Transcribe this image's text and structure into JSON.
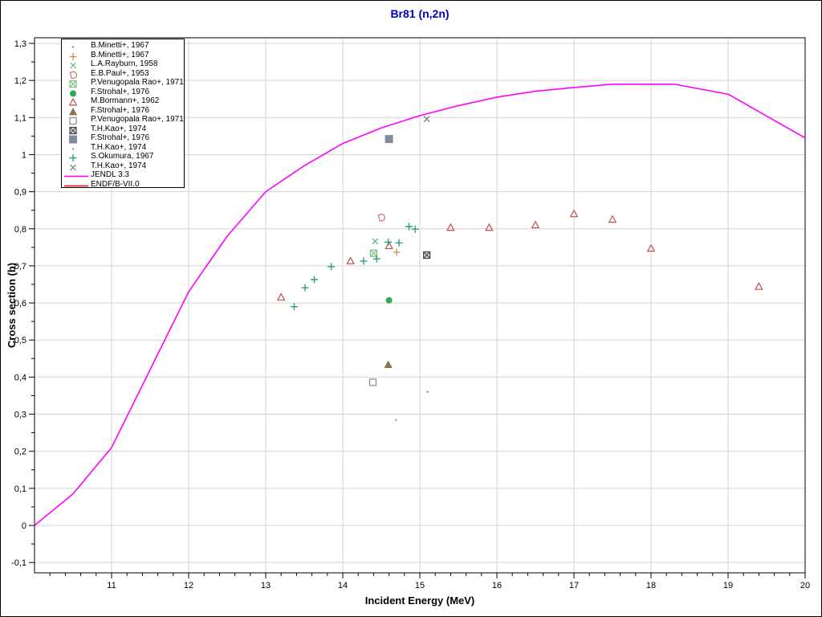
{
  "title": {
    "text": "Br81 (n,2n)",
    "color": "#0000c0"
  },
  "axes": {
    "xlabel": "Incident Energy (MeV)",
    "ylabel": "Cross section (b)",
    "x_min": 10,
    "x_max": 20,
    "y_min": -0.128,
    "y_max": 1.315,
    "x_major_ticks": [
      {
        "v": 11,
        "label": "11"
      },
      {
        "v": 12,
        "label": "12"
      },
      {
        "v": 13,
        "label": "13"
      },
      {
        "v": 14,
        "label": "14"
      },
      {
        "v": 15,
        "label": "15"
      },
      {
        "v": 16,
        "label": "16"
      },
      {
        "v": 17,
        "label": "17"
      },
      {
        "v": 18,
        "label": "18"
      },
      {
        "v": 19,
        "label": "19"
      },
      {
        "v": 20,
        "label": "20"
      }
    ],
    "y_major_ticks": [
      {
        "v": -0.1,
        "label": "-0,1"
      },
      {
        "v": 0,
        "label": "0"
      },
      {
        "v": 0.1,
        "label": "0,1"
      },
      {
        "v": 0.2,
        "label": "0,2"
      },
      {
        "v": 0.3,
        "label": "0,3"
      },
      {
        "v": 0.4,
        "label": "0,4"
      },
      {
        "v": 0.5,
        "label": "0,5"
      },
      {
        "v": 0.6,
        "label": "0,6"
      },
      {
        "v": 0.7,
        "label": "0,7"
      },
      {
        "v": 0.8,
        "label": "0,8"
      },
      {
        "v": 0.9,
        "label": "0,9"
      },
      {
        "v": 1,
        "label": "1"
      },
      {
        "v": 1.1,
        "label": "1,1"
      },
      {
        "v": 1.2,
        "label": "1,2"
      },
      {
        "v": 1.3,
        "label": "1,3"
      }
    ],
    "x_minor_step": 0.2,
    "y_minor_step": 0.05,
    "grid_color": "#d4d4d4",
    "axis_color": "#000000",
    "grid_on": true
  },
  "chart_data": {
    "type": "line+scatter",
    "title": "Br81 (n,2n)",
    "xlabel": "Incident Energy (MeV)",
    "ylabel": "Cross section (b)",
    "xlim": [
      10,
      20
    ],
    "ylim": [
      -0.128,
      1.315
    ],
    "legend_position": "top-left",
    "series": [
      {
        "name": "B.Minetti+, 1967",
        "marker": "dot",
        "color": "#b08a5a",
        "points": [
          [
            14.69,
            0.284
          ]
        ]
      },
      {
        "name": "B.Minetti+, 1967",
        "marker": "plus",
        "color": "#bf9a55",
        "points": [
          [
            14.7,
            0.737
          ]
        ]
      },
      {
        "name": "L.A.Rayburn, 1958",
        "marker": "x",
        "color": "#5cb585",
        "points": [
          [
            14.42,
            0.766
          ]
        ]
      },
      {
        "name": "E.B.Paul+, 1953",
        "marker": "d-open",
        "color": "#c87272",
        "points": [
          [
            14.5,
            0.83
          ]
        ]
      },
      {
        "name": "P.Venugopala Rao+, 1971",
        "marker": "square-hatch",
        "color": "#85bb85",
        "points": [
          [
            14.4,
            0.734
          ]
        ]
      },
      {
        "name": "F.Strohal+, 1976",
        "marker": "circle-fill",
        "color": "#35a855",
        "points": [
          [
            14.6,
            0.607
          ]
        ]
      },
      {
        "name": "M.Bormann+, 1962",
        "marker": "triangle-open",
        "color": "#c14f4f",
        "points": [
          [
            13.2,
            0.615
          ],
          [
            14.1,
            0.713
          ],
          [
            14.6,
            0.754
          ],
          [
            15.4,
            0.803
          ],
          [
            15.9,
            0.803
          ],
          [
            16.5,
            0.81
          ],
          [
            17.0,
            0.84
          ],
          [
            17.5,
            0.825
          ],
          [
            18.0,
            0.747
          ],
          [
            19.4,
            0.644
          ]
        ]
      },
      {
        "name": "F.Strohal+, 1976",
        "marker": "triangle-fill",
        "color": "#8a7450",
        "points": [
          [
            14.59,
            0.433
          ]
        ]
      },
      {
        "name": "P.Venugopala Rao+, 1971",
        "marker": "square-open",
        "color": "#888888",
        "points": [
          [
            14.39,
            0.386
          ]
        ]
      },
      {
        "name": "T.H.Kao+, 1974",
        "marker": "square-x",
        "color": "#40404a",
        "points": [
          [
            15.09,
            0.729
          ]
        ]
      },
      {
        "name": "F.Strohal+, 1976",
        "marker": "square-fill",
        "color": "#7d8d9d",
        "points": [
          [
            14.6,
            1.042
          ]
        ]
      },
      {
        "name": "T.H.Kao+, 1974",
        "marker": "dot",
        "color": "#8890a0",
        "points": [
          [
            15.1,
            0.36
          ]
        ]
      },
      {
        "name": "S.Okumura, 1967",
        "marker": "plus",
        "color": "#2f9e82",
        "points": [
          [
            13.37,
            0.59
          ],
          [
            13.51,
            0.641
          ],
          [
            13.63,
            0.663
          ],
          [
            13.85,
            0.698
          ],
          [
            14.27,
            0.713
          ],
          [
            14.44,
            0.719
          ],
          [
            14.59,
            0.764
          ],
          [
            14.73,
            0.762
          ],
          [
            14.86,
            0.806
          ],
          [
            14.94,
            0.799
          ]
        ]
      },
      {
        "name": "T.H.Kao+, 1974",
        "marker": "x",
        "color": "#6d7888",
        "points": [
          [
            15.09,
            1.096
          ]
        ]
      },
      {
        "name": "JENDL 3.3",
        "marker": "line",
        "color": "#ff00ff",
        "points": [
          [
            10.0,
            0.0
          ],
          [
            10.5,
            0.085
          ],
          [
            11.0,
            0.21
          ],
          [
            11.5,
            0.42
          ],
          [
            12.0,
            0.63
          ],
          [
            12.5,
            0.78
          ],
          [
            13.0,
            0.9
          ],
          [
            13.5,
            0.97
          ],
          [
            14.0,
            1.03
          ],
          [
            14.5,
            1.072
          ],
          [
            15.0,
            1.105
          ],
          [
            15.5,
            1.132
          ],
          [
            16.0,
            1.155
          ],
          [
            16.5,
            1.171
          ],
          [
            17.0,
            1.181
          ],
          [
            17.5,
            1.19
          ],
          [
            18.3,
            1.19
          ],
          [
            19.0,
            1.163
          ],
          [
            20.0,
            1.045
          ]
        ]
      },
      {
        "name": "ENDF/B-VII.0",
        "marker": "line",
        "color": "#ff0000",
        "points": []
      }
    ]
  }
}
